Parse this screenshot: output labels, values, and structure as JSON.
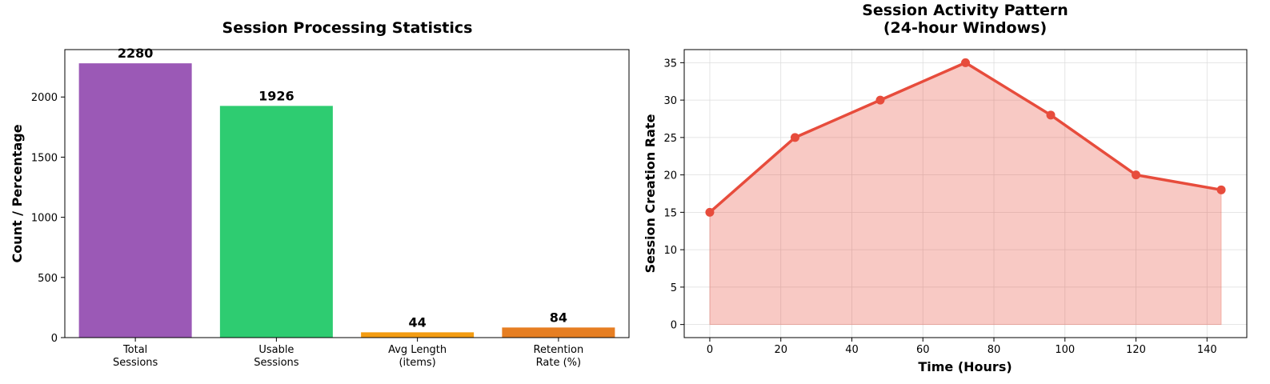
{
  "chart_data": [
    {
      "type": "bar",
      "title": "Session Processing Statistics",
      "xlabel": "",
      "ylabel": "Count / Percentage",
      "categories": [
        "Total\nSessions",
        "Usable\nSessions",
        "Avg Length\n(items)",
        "Retention\nRate (%)"
      ],
      "values": [
        2280,
        1926,
        44,
        84
      ],
      "data_labels": [
        "2280",
        "1926",
        "44",
        "84"
      ],
      "colors": [
        "#9b59b6",
        "#2ecc71",
        "#f39c12",
        "#e67e22"
      ],
      "ylim": [
        0,
        2394
      ],
      "yticks": [
        0,
        500,
        1000,
        1500,
        2000
      ],
      "grid": false
    },
    {
      "type": "area",
      "title": "Session Activity Pattern\n(24-hour Windows)",
      "xlabel": "Time (Hours)",
      "ylabel": "Session Creation Rate",
      "x": [
        0,
        24,
        48,
        72,
        96,
        120,
        144
      ],
      "y": [
        15,
        25,
        30,
        35,
        28,
        20,
        18
      ],
      "color": "#e74c3c",
      "xlim": [
        -7.2,
        151.2
      ],
      "ylim": [
        -1.75,
        36.75
      ],
      "xticks": [
        0,
        20,
        40,
        60,
        80,
        100,
        120,
        140
      ],
      "yticks": [
        0,
        5,
        10,
        15,
        20,
        25,
        30,
        35
      ],
      "grid": true
    }
  ]
}
